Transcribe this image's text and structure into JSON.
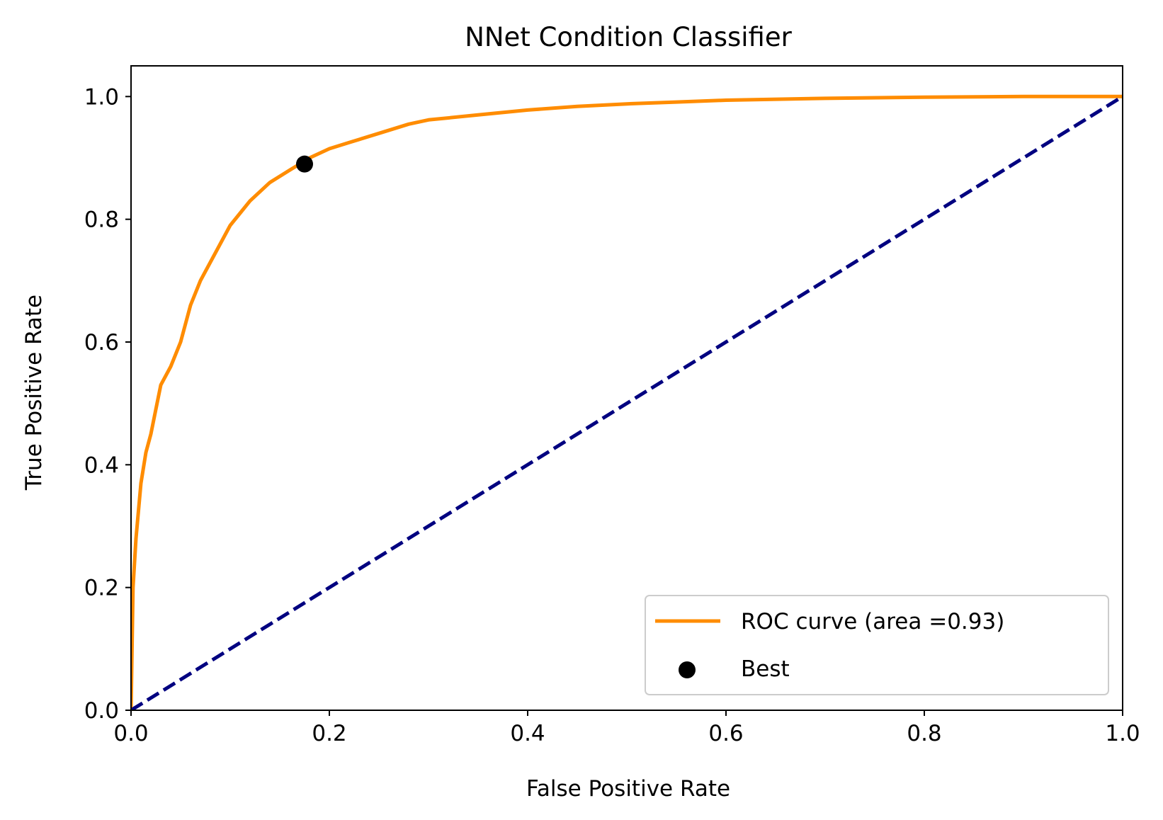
{
  "chart_data": {
    "type": "line",
    "title": "NNet Condition Classifier",
    "xlabel": "False Positive Rate",
    "ylabel": "True Positive Rate",
    "xlim": [
      0.0,
      1.0
    ],
    "ylim": [
      0.0,
      1.05
    ],
    "xticks": [
      0.0,
      0.2,
      0.4,
      0.6,
      0.8,
      1.0
    ],
    "xtick_labels": [
      "0.0",
      "0.2",
      "0.4",
      "0.6",
      "0.8",
      "1.0"
    ],
    "yticks": [
      0.0,
      0.2,
      0.4,
      0.6,
      0.8,
      1.0
    ],
    "ytick_labels": [
      "0.0",
      "0.2",
      "0.4",
      "0.6",
      "0.8",
      "1.0"
    ],
    "grid": false,
    "legend_position": "lower-right",
    "series": [
      {
        "name": "ROC curve (area =0.93)",
        "kind": "line",
        "color": "#ff8c00",
        "x": [
          0.0,
          0.002,
          0.005,
          0.01,
          0.015,
          0.02,
          0.025,
          0.03,
          0.04,
          0.05,
          0.06,
          0.07,
          0.08,
          0.09,
          0.1,
          0.11,
          0.12,
          0.13,
          0.14,
          0.15,
          0.16,
          0.17,
          0.18,
          0.2,
          0.22,
          0.25,
          0.28,
          0.3,
          0.35,
          0.4,
          0.45,
          0.5,
          0.55,
          0.6,
          0.7,
          0.8,
          0.9,
          1.0
        ],
        "y": [
          0.0,
          0.2,
          0.28,
          0.37,
          0.42,
          0.45,
          0.49,
          0.53,
          0.56,
          0.6,
          0.66,
          0.7,
          0.73,
          0.76,
          0.79,
          0.81,
          0.83,
          0.845,
          0.86,
          0.87,
          0.88,
          0.89,
          0.9,
          0.915,
          0.925,
          0.94,
          0.955,
          0.962,
          0.97,
          0.978,
          0.984,
          0.988,
          0.991,
          0.994,
          0.997,
          0.999,
          1.0,
          1.0
        ]
      },
      {
        "name": "",
        "kind": "dashed-line",
        "color": "#000080",
        "x": [
          0.0,
          1.0
        ],
        "y": [
          0.0,
          1.0
        ]
      },
      {
        "name": "Best",
        "kind": "scatter",
        "color": "#000000",
        "x": [
          0.175
        ],
        "y": [
          0.89
        ]
      }
    ]
  }
}
